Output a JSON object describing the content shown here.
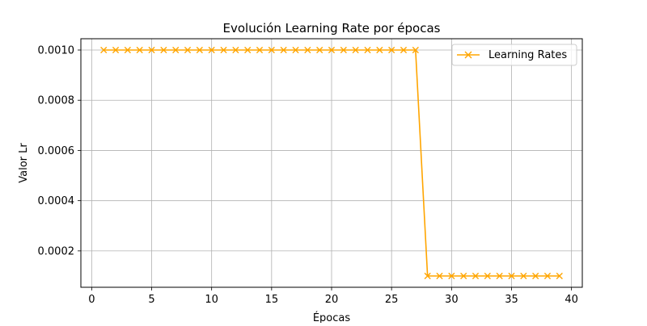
{
  "chart_data": {
    "type": "line",
    "title": "Evolución Learning Rate por épocas",
    "xlabel": "Épocas",
    "ylabel": "Valor Lr",
    "xlim": [
      -0.9,
      40.9
    ],
    "ylim": [
      5.5e-05,
      0.001045
    ],
    "xticks": [
      0,
      5,
      10,
      15,
      20,
      25,
      30,
      35,
      40
    ],
    "xtick_labels": [
      "0",
      "5",
      "10",
      "15",
      "20",
      "25",
      "30",
      "35",
      "40"
    ],
    "yticks": [
      0.0002,
      0.0004,
      0.0006,
      0.0008,
      0.001
    ],
    "ytick_labels": [
      "0.0002",
      "0.0004",
      "0.0006",
      "0.0008",
      "0.0010"
    ],
    "grid": true,
    "legend_position": "upper right",
    "series": [
      {
        "name": "Learning Rates",
        "color": "#ffa500",
        "marker": "x",
        "x": [
          1,
          2,
          3,
          4,
          5,
          6,
          7,
          8,
          9,
          10,
          11,
          12,
          13,
          14,
          15,
          16,
          17,
          18,
          19,
          20,
          21,
          22,
          23,
          24,
          25,
          26,
          27,
          28,
          29,
          30,
          31,
          32,
          33,
          34,
          35,
          36,
          37,
          38,
          39
        ],
        "values": [
          0.001,
          0.001,
          0.001,
          0.001,
          0.001,
          0.001,
          0.001,
          0.001,
          0.001,
          0.001,
          0.001,
          0.001,
          0.001,
          0.001,
          0.001,
          0.001,
          0.001,
          0.001,
          0.001,
          0.001,
          0.001,
          0.001,
          0.001,
          0.001,
          0.001,
          0.001,
          0.001,
          0.0001,
          0.0001,
          0.0001,
          0.0001,
          0.0001,
          0.0001,
          0.0001,
          0.0001,
          0.0001,
          0.0001,
          0.0001,
          0.0001
        ]
      }
    ]
  }
}
